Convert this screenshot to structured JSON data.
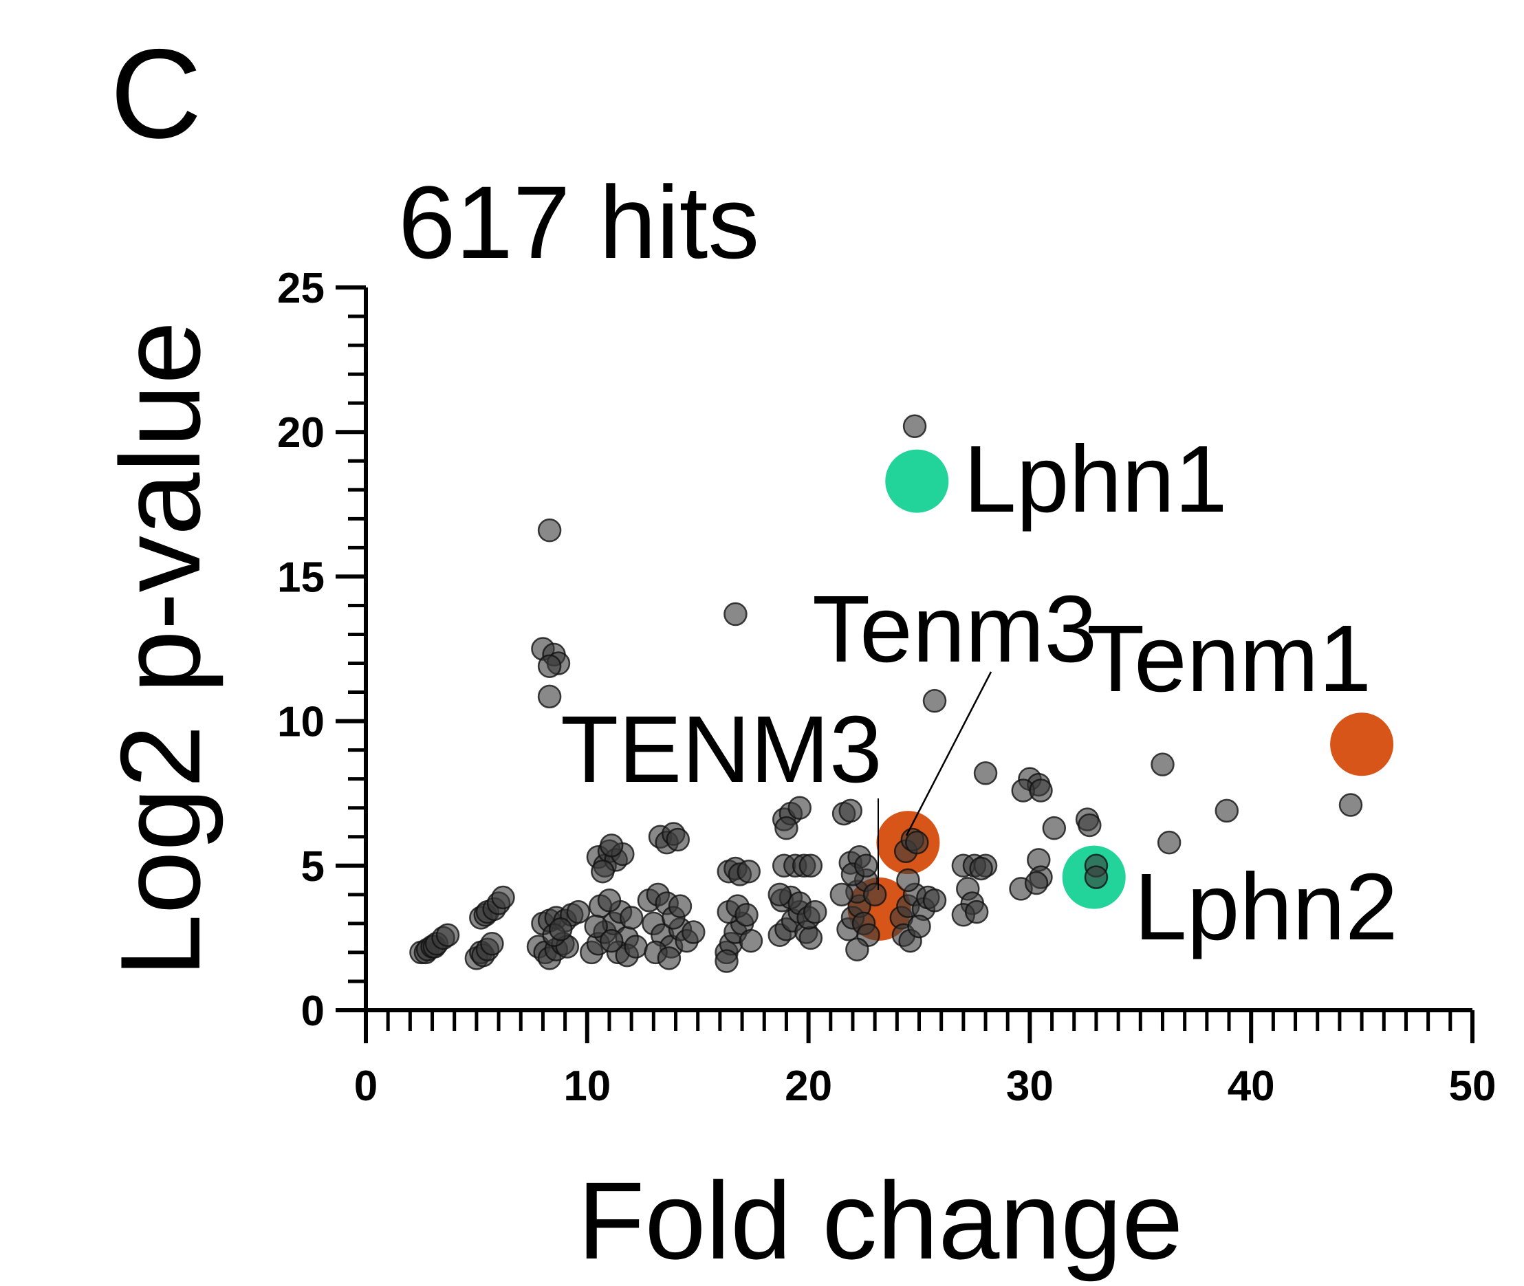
{
  "panel_label": "C",
  "chart_data": {
    "type": "scatter",
    "title": "617 hits",
    "xlabel": "Fold change",
    "ylabel": "Log2 p-value",
    "xlim": [
      0,
      50
    ],
    "ylim": [
      0,
      25
    ],
    "xticks": [
      0,
      10,
      20,
      30,
      40,
      50
    ],
    "yticks": [
      0,
      5,
      10,
      15,
      20,
      25
    ],
    "xtick_labels": [
      "0",
      "10",
      "20",
      "30",
      "40",
      "50"
    ],
    "ytick_labels": [
      "0",
      "5",
      "10",
      "15",
      "20",
      "25"
    ],
    "grid": false,
    "colors": {
      "points": "#3a3a3a",
      "lphn": "#22d39a",
      "tenm": "#d75518"
    },
    "highlighted": [
      {
        "label": "Lphn1",
        "x": 24.9,
        "y": 18.3,
        "color": "#22d39a"
      },
      {
        "label": "Lphn2",
        "x": 32.9,
        "y": 4.6,
        "color": "#22d39a"
      },
      {
        "label": "Tenm1",
        "x": 45.0,
        "y": 9.2,
        "color": "#d75518"
      },
      {
        "label": "TENM3",
        "x": 23.2,
        "y": 3.5,
        "color": "#d75518"
      },
      {
        "label": "Tenm3",
        "x": 24.5,
        "y": 5.8,
        "color": "#d75518"
      }
    ],
    "points": [
      [
        24.8,
        20.2
      ],
      [
        8.3,
        16.6
      ],
      [
        16.7,
        13.7
      ],
      [
        8.0,
        12.5
      ],
      [
        8.5,
        12.3
      ],
      [
        8.7,
        12.0
      ],
      [
        8.3,
        11.9
      ],
      [
        8.3,
        10.85
      ],
      [
        25.7,
        10.7
      ],
      [
        28.0,
        8.2
      ],
      [
        30.0,
        8.0
      ],
      [
        30.4,
        7.8
      ],
      [
        29.7,
        7.6
      ],
      [
        30.5,
        7.6
      ],
      [
        36.0,
        8.5
      ],
      [
        38.9,
        6.9
      ],
      [
        44.5,
        7.1
      ],
      [
        36.3,
        5.8
      ],
      [
        31.1,
        6.3
      ],
      [
        32.6,
        6.6
      ],
      [
        32.7,
        6.4
      ],
      [
        30.4,
        5.2
      ],
      [
        30.5,
        4.6
      ],
      [
        29.6,
        4.2
      ],
      [
        30.3,
        4.4
      ],
      [
        33.0,
        5.0
      ],
      [
        33.0,
        4.6
      ],
      [
        27.0,
        5.0
      ],
      [
        27.5,
        5.0
      ],
      [
        28.0,
        5.0
      ],
      [
        27.2,
        4.2
      ],
      [
        27.4,
        3.7
      ],
      [
        27.0,
        3.3
      ],
      [
        27.6,
        3.4
      ],
      [
        27.8,
        4.9
      ],
      [
        2.5,
        2.0
      ],
      [
        2.7,
        2.0
      ],
      [
        2.8,
        2.1
      ],
      [
        3.0,
        2.2
      ],
      [
        3.1,
        2.2
      ],
      [
        3.2,
        2.3
      ],
      [
        3.5,
        2.5
      ],
      [
        3.7,
        2.6
      ],
      [
        5.0,
        1.8
      ],
      [
        5.2,
        2.0
      ],
      [
        5.3,
        1.9
      ],
      [
        5.5,
        2.1
      ],
      [
        5.7,
        2.3
      ],
      [
        5.2,
        3.2
      ],
      [
        5.4,
        3.3
      ],
      [
        5.5,
        3.4
      ],
      [
        5.8,
        3.5
      ],
      [
        6.0,
        3.7
      ],
      [
        6.2,
        3.9
      ],
      [
        7.8,
        2.2
      ],
      [
        8.1,
        2.0
      ],
      [
        8.3,
        1.8
      ],
      [
        8.6,
        2.1
      ],
      [
        8.9,
        2.3
      ],
      [
        9.1,
        2.2
      ],
      [
        8.0,
        3.0
      ],
      [
        8.3,
        3.1
      ],
      [
        8.6,
        3.2
      ],
      [
        9.0,
        3.1
      ],
      [
        9.3,
        3.3
      ],
      [
        9.6,
        3.4
      ],
      [
        8.5,
        2.6
      ],
      [
        8.8,
        2.8
      ],
      [
        10.2,
        2.0
      ],
      [
        10.5,
        2.3
      ],
      [
        10.8,
        2.7
      ],
      [
        11.2,
        3.0
      ],
      [
        11.5,
        3.4
      ],
      [
        11.8,
        2.5
      ],
      [
        10.6,
        3.6
      ],
      [
        11.0,
        3.8
      ],
      [
        11.4,
        2.0
      ],
      [
        11.8,
        1.9
      ],
      [
        10.4,
        2.9
      ],
      [
        11.1,
        2.4
      ],
      [
        12.0,
        3.2
      ],
      [
        12.2,
        2.2
      ],
      [
        10.5,
        5.3
      ],
      [
        10.8,
        5.0
      ],
      [
        11.0,
        5.5
      ],
      [
        11.3,
        5.2
      ],
      [
        11.6,
        5.4
      ],
      [
        10.7,
        4.8
      ],
      [
        11.1,
        5.7
      ],
      [
        12.8,
        3.8
      ],
      [
        13.2,
        4.0
      ],
      [
        13.6,
        3.7
      ],
      [
        13.0,
        3.0
      ],
      [
        13.4,
        2.6
      ],
      [
        13.8,
        2.2
      ],
      [
        14.2,
        2.8
      ],
      [
        14.5,
        2.4
      ],
      [
        13.1,
        2.0
      ],
      [
        13.7,
        1.8
      ],
      [
        14.8,
        2.7
      ],
      [
        13.9,
        3.2
      ],
      [
        14.2,
        3.6
      ],
      [
        13.3,
        6.0
      ],
      [
        13.6,
        5.8
      ],
      [
        13.9,
        6.1
      ],
      [
        14.1,
        5.9
      ],
      [
        16.3,
        2.0
      ],
      [
        16.5,
        2.3
      ],
      [
        16.7,
        2.7
      ],
      [
        17.0,
        3.0
      ],
      [
        16.4,
        3.4
      ],
      [
        16.8,
        3.6
      ],
      [
        17.2,
        3.3
      ],
      [
        16.3,
        1.7
      ],
      [
        17.4,
        2.4
      ],
      [
        16.4,
        4.8
      ],
      [
        16.7,
        4.9
      ],
      [
        16.9,
        4.7
      ],
      [
        17.3,
        4.8
      ],
      [
        18.7,
        2.6
      ],
      [
        19.0,
        2.8
      ],
      [
        19.3,
        3.1
      ],
      [
        19.6,
        3.4
      ],
      [
        19.9,
        2.7
      ],
      [
        20.1,
        2.5
      ],
      [
        18.8,
        3.8
      ],
      [
        19.2,
        3.9
      ],
      [
        19.6,
        3.7
      ],
      [
        20.0,
        3.2
      ],
      [
        18.9,
        5.0
      ],
      [
        19.4,
        5.0
      ],
      [
        19.8,
        5.0
      ],
      [
        20.1,
        5.0
      ],
      [
        18.9,
        6.6
      ],
      [
        19.2,
        6.8
      ],
      [
        19.0,
        6.3
      ],
      [
        19.6,
        7.0
      ],
      [
        18.7,
        4.0
      ],
      [
        20.3,
        3.4
      ],
      [
        21.8,
        2.8
      ],
      [
        22.0,
        3.2
      ],
      [
        22.3,
        3.6
      ],
      [
        22.5,
        3.0
      ],
      [
        22.7,
        2.6
      ],
      [
        22.2,
        4.1
      ],
      [
        22.6,
        4.5
      ],
      [
        21.9,
        5.1
      ],
      [
        22.3,
        5.3
      ],
      [
        22.0,
        4.7
      ],
      [
        22.2,
        2.1
      ],
      [
        23.0,
        4.0
      ],
      [
        21.6,
        6.8
      ],
      [
        21.9,
        6.9
      ],
      [
        22.6,
        5.0
      ],
      [
        21.5,
        4.0
      ],
      [
        24.2,
        3.2
      ],
      [
        24.5,
        3.6
      ],
      [
        24.8,
        4.0
      ],
      [
        25.2,
        3.5
      ],
      [
        24.3,
        2.6
      ],
      [
        24.6,
        2.4
      ],
      [
        25.0,
        2.9
      ],
      [
        25.4,
        3.9
      ],
      [
        24.4,
        5.5
      ],
      [
        24.7,
        5.9
      ],
      [
        24.9,
        5.8
      ],
      [
        24.5,
        4.5
      ],
      [
        25.7,
        3.8
      ]
    ]
  }
}
